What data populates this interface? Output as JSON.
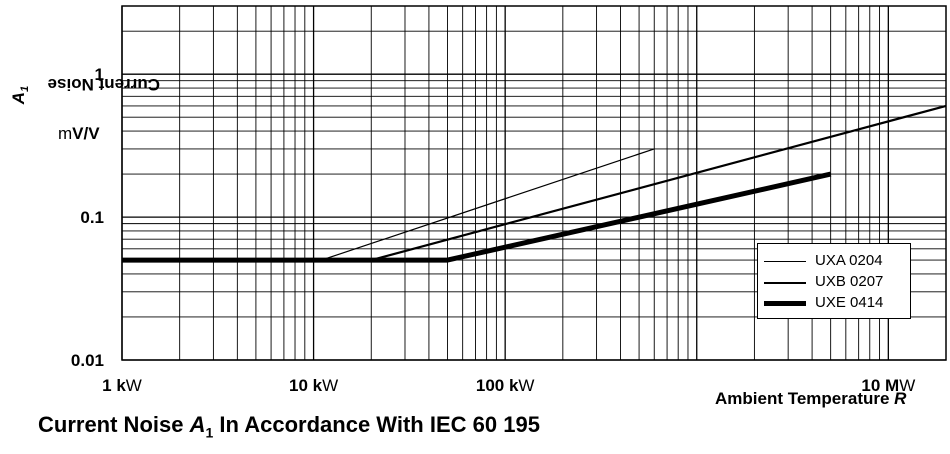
{
  "chart_data": {
    "type": "line",
    "title": "",
    "caption_prefix": "Current Noise ",
    "caption_symbol": "A",
    "caption_sub": "1",
    "caption_suffix": " In Accordance With IEC 60 195",
    "ylabel_text": "Current Noise ",
    "ylabel_symbol": "A",
    "ylabel_sub": "1",
    "yunit_prefix": "m",
    "yunit_bold": "V/V",
    "xlabel_text": "Ambient Temperature ",
    "xlabel_symbol": "R",
    "x_scale": "log",
    "y_scale": "log",
    "xlim": [
      1000,
      20000000
    ],
    "ylim": [
      0.01,
      3
    ],
    "grid": true,
    "legend_position": "bottom-right",
    "x_ticks": [
      {
        "value": 1000,
        "bold": "1 k",
        "rest": "W"
      },
      {
        "value": 10000,
        "bold": "10 k",
        "rest": "W"
      },
      {
        "value": 100000,
        "bold": "100 k",
        "rest": "W"
      },
      {
        "value": 10000000,
        "bold": "10 M",
        "rest": "W"
      }
    ],
    "y_ticks": [
      {
        "value": 1,
        "label": "1"
      },
      {
        "value": 0.1,
        "label": "0.1"
      },
      {
        "value": 0.01,
        "label": "0.01"
      }
    ],
    "series": [
      {
        "name": "UXA 0204",
        "weight": 1.2,
        "x": [
          1000,
          11000,
          600000
        ],
        "y": [
          0.05,
          0.05,
          0.3
        ]
      },
      {
        "name": "UXB 0207",
        "weight": 2.2,
        "x": [
          1000,
          20000,
          20000000
        ],
        "y": [
          0.05,
          0.05,
          0.6
        ]
      },
      {
        "name": "UXE 0414",
        "weight": 5,
        "x": [
          1000,
          50000,
          5000000
        ],
        "y": [
          0.05,
          0.05,
          0.2
        ]
      }
    ]
  }
}
